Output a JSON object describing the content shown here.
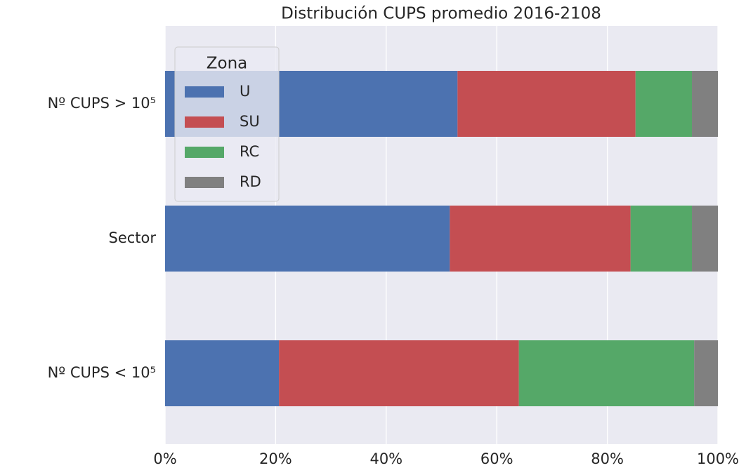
{
  "chart_data": {
    "type": "stacked-barh",
    "title": "Distribución CUPS promedio 2016-2108",
    "categories": [
      "Nº CUPS > 10⁵",
      "Sector",
      "Nº CUPS < 10⁵"
    ],
    "series": [
      {
        "name": "U",
        "color": "#4c72b0",
        "values": [
          52.9,
          51.5,
          20.6
        ]
      },
      {
        "name": "SU",
        "color": "#c44e52",
        "values": [
          32.2,
          32.7,
          43.4
        ]
      },
      {
        "name": "RC",
        "color": "#55a868",
        "values": [
          10.2,
          11.1,
          31.7
        ]
      },
      {
        "name": "RD",
        "color": "#808080",
        "values": [
          4.7,
          4.7,
          4.3
        ]
      }
    ],
    "legend_title": "Zona",
    "legend": "upper left",
    "xlim": [
      0,
      100
    ],
    "xticks": [
      {
        "value": 0,
        "label": "0%"
      },
      {
        "value": 20,
        "label": "20%"
      },
      {
        "value": 40,
        "label": "40%"
      },
      {
        "value": 60,
        "label": "60%"
      },
      {
        "value": 80,
        "label": "80%"
      },
      {
        "value": 100,
        "label": "100%"
      }
    ],
    "grid": true
  }
}
